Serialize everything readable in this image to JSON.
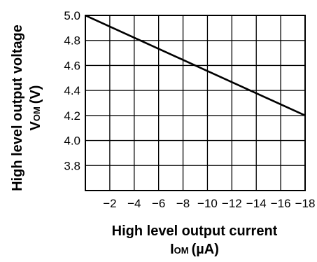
{
  "chart_data": {
    "type": "line",
    "xlabel": "High level output current",
    "xunit": {
      "symbol": "I",
      "subscript": "OM",
      "unit": "(µA)"
    },
    "ylabel": "High level output voltage",
    "yunit": {
      "symbol": "V",
      "subscript": "OM",
      "unit": "(V)"
    },
    "xlim": [
      0,
      -18
    ],
    "ylim": [
      3.6,
      5.0
    ],
    "x_ticks": [
      -2,
      -4,
      -6,
      -8,
      -10,
      -12,
      -14,
      -16,
      -18
    ],
    "x_tick_labels": [
      "−2",
      "−4",
      "−6",
      "−8",
      "−10",
      "−12",
      "−14",
      "−16",
      "−18"
    ],
    "y_ticks": [
      3.8,
      4.0,
      4.2,
      4.4,
      4.6,
      4.8,
      5.0
    ],
    "y_tick_labels": [
      "3.8",
      "4.0",
      "4.2",
      "4.4",
      "4.6",
      "4.8",
      "5.0"
    ],
    "grid": true,
    "series": [
      {
        "x": [
          0,
          -18
        ],
        "y": [
          5.0,
          4.2
        ]
      }
    ],
    "colors": {
      "line": "#000000",
      "grid": "#000000"
    }
  }
}
